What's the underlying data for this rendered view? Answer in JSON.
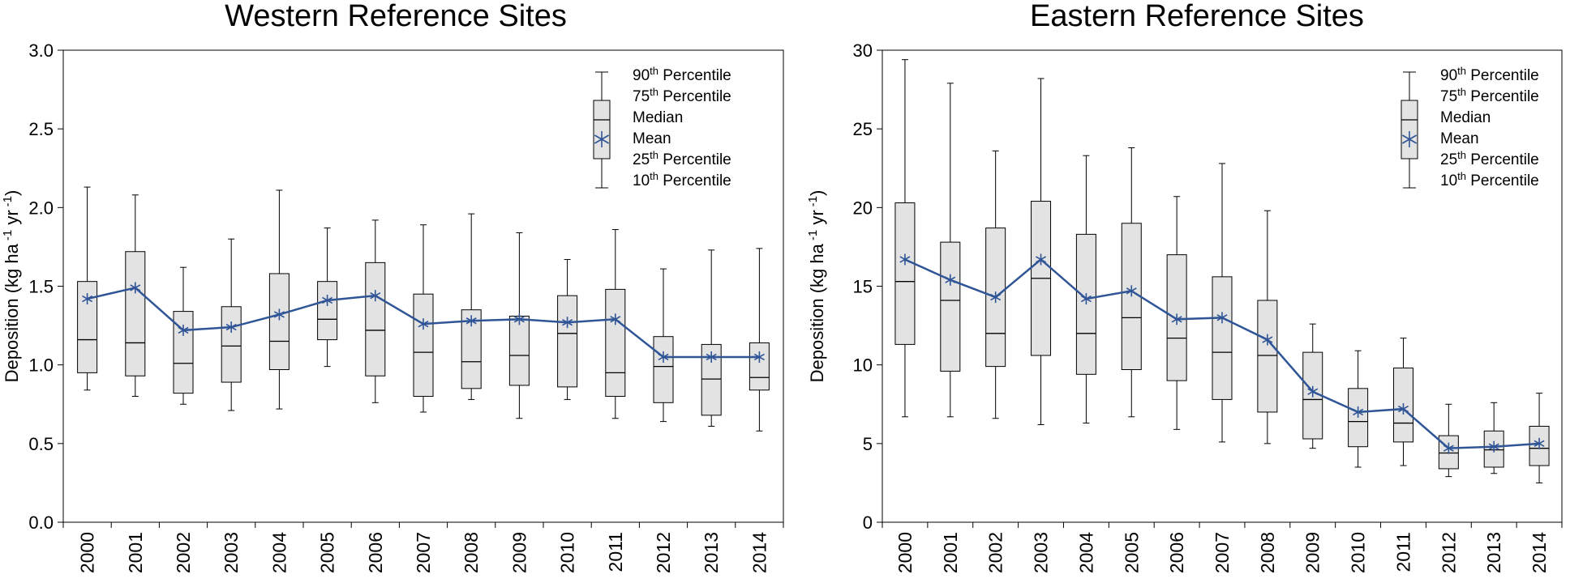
{
  "chart_data": [
    {
      "type": "boxplot",
      "title": "Western Reference Sites",
      "ylabel": "Deposition (kg ha -1 yr -1)",
      "ylabel_parts": {
        "pre": "Deposition (kg ha",
        "exp1": "-1",
        "mid": " yr",
        "exp2": "-1",
        "post": ")"
      },
      "xlabel": "",
      "ylim": [
        0,
        3.0
      ],
      "yticks": [
        0,
        0.5,
        1.0,
        1.5,
        2.0,
        2.5,
        3.0
      ],
      "ytick_labels": [
        "0.0",
        "0.5",
        "1.0",
        "1.5",
        "2.0",
        "2.5",
        "3.0"
      ],
      "categories": [
        "2000",
        "2001",
        "2002",
        "2003",
        "2004",
        "2005",
        "2006",
        "2007",
        "2008",
        "2009",
        "2010",
        "2011",
        "2012",
        "2013",
        "2014"
      ],
      "p10": [
        0.84,
        0.8,
        0.75,
        0.71,
        0.72,
        0.99,
        0.76,
        0.7,
        0.78,
        0.66,
        0.78,
        0.66,
        0.64,
        0.61,
        0.58
      ],
      "p25": [
        0.95,
        0.93,
        0.82,
        0.89,
        0.97,
        1.16,
        0.93,
        0.8,
        0.85,
        0.87,
        0.86,
        0.8,
        0.76,
        0.68,
        0.84
      ],
      "median": [
        1.16,
        1.14,
        1.01,
        1.12,
        1.15,
        1.29,
        1.22,
        1.08,
        1.02,
        1.06,
        1.2,
        0.95,
        0.99,
        0.91,
        0.92
      ],
      "p75": [
        1.53,
        1.72,
        1.34,
        1.37,
        1.58,
        1.53,
        1.65,
        1.45,
        1.35,
        1.31,
        1.44,
        1.48,
        1.18,
        1.13,
        1.14
      ],
      "p90": [
        2.13,
        2.08,
        1.62,
        1.8,
        2.11,
        1.87,
        1.92,
        1.89,
        1.96,
        1.84,
        1.67,
        1.86,
        1.61,
        1.73,
        1.74
      ],
      "mean": [
        1.42,
        1.49,
        1.22,
        1.24,
        1.32,
        1.41,
        1.44,
        1.26,
        1.28,
        1.29,
        1.27,
        1.29,
        1.05,
        1.05,
        1.05
      ],
      "legend": {
        "position": "top-right",
        "items": [
          {
            "base": "90",
            "sup": "th",
            "rest": " Percentile"
          },
          {
            "base": "75",
            "sup": "th",
            "rest": " Percentile"
          },
          {
            "base": "Median",
            "sup": "",
            "rest": ""
          },
          {
            "base": "Mean",
            "sup": "",
            "rest": ""
          },
          {
            "base": "25",
            "sup": "th",
            "rest": " Percentile"
          },
          {
            "base": "10",
            "sup": "th",
            "rest": " Percentile"
          }
        ]
      }
    },
    {
      "type": "boxplot",
      "title": "Eastern Reference Sites",
      "ylabel": "Deposition (kg ha -1 yr -1)",
      "ylabel_parts": {
        "pre": "Deposition (kg ha",
        "exp1": "-1",
        "mid": " yr",
        "exp2": "-1",
        "post": ")"
      },
      "xlabel": "",
      "ylim": [
        0,
        30
      ],
      "yticks": [
        0,
        5,
        10,
        15,
        20,
        25,
        30
      ],
      "ytick_labels": [
        "0",
        "5",
        "10",
        "15",
        "20",
        "25",
        "30"
      ],
      "categories": [
        "2000",
        "2001",
        "2002",
        "2003",
        "2004",
        "2005",
        "2006",
        "2007",
        "2008",
        "2009",
        "2010",
        "2011",
        "2012",
        "2013",
        "2014"
      ],
      "p10": [
        6.7,
        6.7,
        6.6,
        6.2,
        6.3,
        6.7,
        5.9,
        5.1,
        5.0,
        4.7,
        3.5,
        3.6,
        2.9,
        3.1,
        2.5
      ],
      "p25": [
        11.3,
        9.6,
        9.9,
        10.6,
        9.4,
        9.7,
        9.0,
        7.8,
        7.0,
        5.3,
        4.8,
        5.1,
        3.4,
        3.5,
        3.6
      ],
      "median": [
        15.3,
        14.1,
        12.0,
        15.5,
        12.0,
        13.0,
        11.7,
        10.8,
        10.6,
        7.8,
        6.4,
        6.3,
        4.4,
        4.6,
        4.7
      ],
      "p75": [
        20.3,
        17.8,
        18.7,
        20.4,
        18.3,
        19.0,
        17.0,
        15.6,
        14.1,
        10.8,
        8.5,
        9.8,
        5.5,
        5.8,
        6.1
      ],
      "p90": [
        29.4,
        27.9,
        23.6,
        28.2,
        23.3,
        23.8,
        20.7,
        22.8,
        19.8,
        12.6,
        10.9,
        11.7,
        7.5,
        7.6,
        8.2
      ],
      "mean": [
        16.7,
        15.4,
        14.3,
        16.7,
        14.2,
        14.7,
        12.9,
        13.0,
        11.6,
        8.3,
        7.0,
        7.2,
        4.7,
        4.8,
        5.0
      ],
      "legend": {
        "position": "top-right",
        "items": [
          {
            "base": "90",
            "sup": "th",
            "rest": " Percentile"
          },
          {
            "base": "75",
            "sup": "th",
            "rest": " Percentile"
          },
          {
            "base": "Median",
            "sup": "",
            "rest": ""
          },
          {
            "base": "Mean",
            "sup": "",
            "rest": ""
          },
          {
            "base": "25",
            "sup": "th",
            "rest": " Percentile"
          },
          {
            "base": "10",
            "sup": "th",
            "rest": " Percentile"
          }
        ]
      }
    }
  ],
  "colors": {
    "box_fill": "#e3e3e3",
    "mean_line": "#2f5597",
    "stroke": "#000000"
  }
}
